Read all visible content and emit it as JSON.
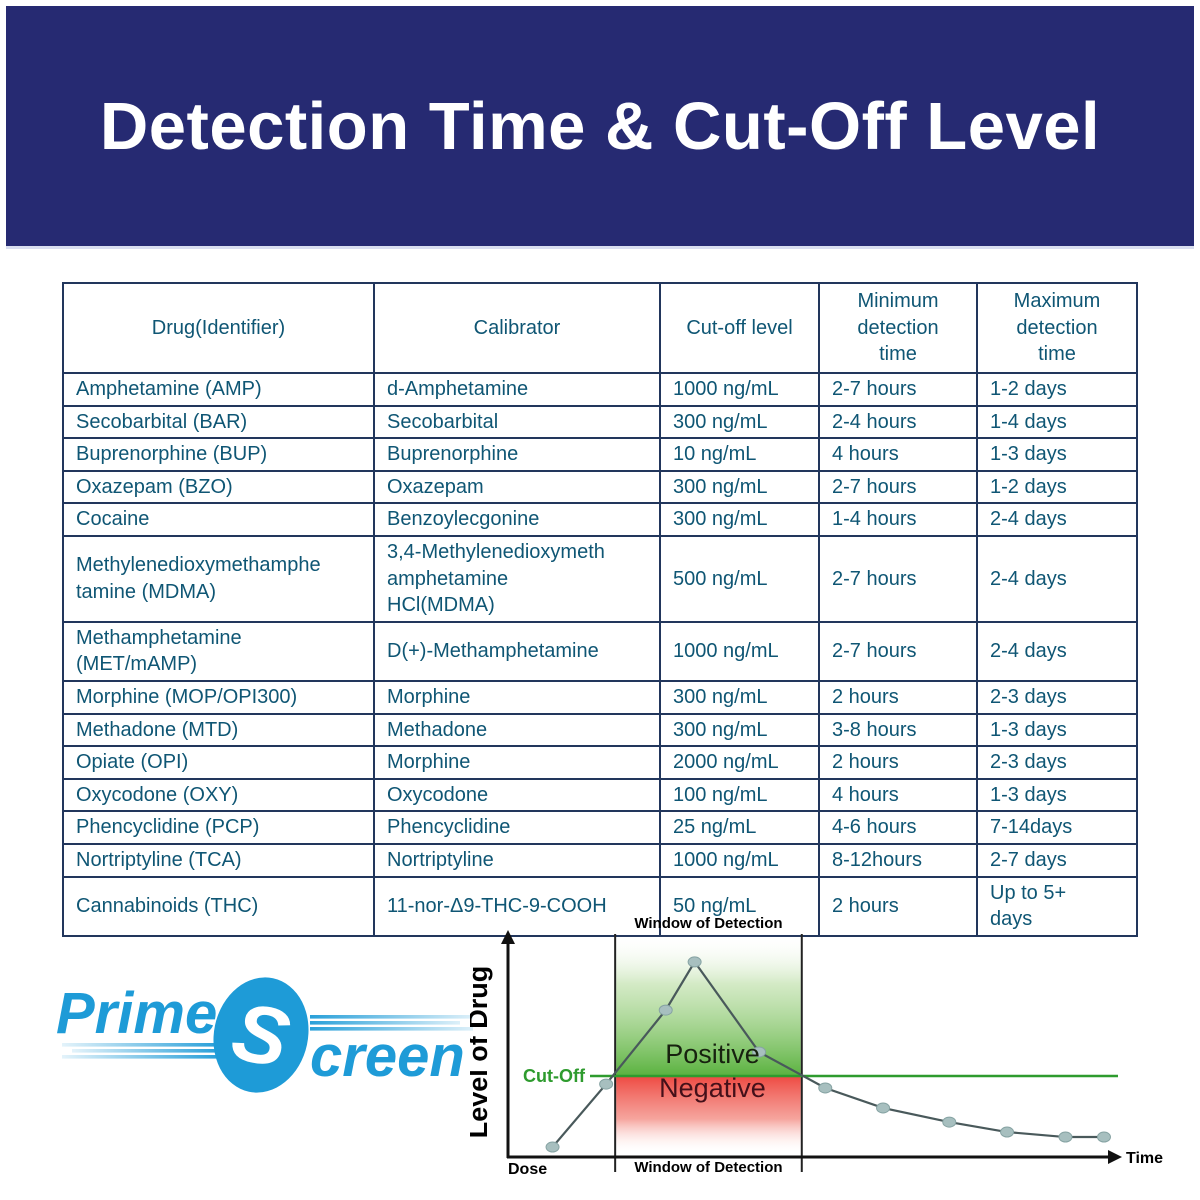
{
  "header": {
    "title": "Detection Time & Cut-Off Level",
    "background_color": "#262a72",
    "text_color": "#ffffff"
  },
  "table": {
    "text_color": "#0f5674",
    "border_color": "#22365c",
    "columns": [
      "Drug(Identifier)",
      "Calibrator",
      "Cut-off level",
      "Minimum\ndetection\ntime",
      "Maximum\ndetection\ntime"
    ],
    "rows": [
      [
        "Amphetamine (AMP)",
        "d-Amphetamine",
        "1000 ng/mL",
        "2-7 hours",
        "1-2 days"
      ],
      [
        "Secobarbital (BAR)",
        "Secobarbital",
        "300 ng/mL",
        "2-4 hours",
        "1-4 days"
      ],
      [
        "Buprenorphine (BUP)",
        "Buprenorphine",
        "10 ng/mL",
        "4 hours",
        "1-3 days"
      ],
      [
        "Oxazepam (BZO)",
        "Oxazepam",
        "300 ng/mL",
        "2-7 hours",
        "1-2 days"
      ],
      [
        "Cocaine",
        "Benzoylecgonine",
        "300 ng/mL",
        "1-4 hours",
        "2-4 days"
      ],
      [
        "Methylenedioxymethamphe\ntamine (MDMA)",
        "3,4-Methylenedioxymeth\namphetamine\nHCl(MDMA)",
        "500 ng/mL",
        "2-7 hours",
        "2-4 days"
      ],
      [
        "Methamphetamine\n(MET/mAMP)",
        "D(+)-Methamphetamine",
        "1000 ng/mL",
        "2-7 hours",
        "2-4 days"
      ],
      [
        "Morphine (MOP/OPI300)",
        "Morphine",
        "300 ng/mL",
        "2 hours",
        "2-3 days"
      ],
      [
        "Methadone (MTD)",
        "Methadone",
        "300 ng/mL",
        "3-8 hours",
        "1-3 days"
      ],
      [
        "Opiate (OPI)",
        "Morphine",
        "2000 ng/mL",
        "2 hours",
        "2-3 days"
      ],
      [
        "Oxycodone (OXY)",
        "Oxycodone",
        "100 ng/mL",
        "4 hours",
        "1-3 days"
      ],
      [
        "Phencyclidine (PCP)",
        "Phencyclidine",
        "25 ng/mL",
        "4-6 hours",
        "7-14days"
      ],
      [
        "Nortriptyline (TCA)",
        "Nortriptyline",
        "1000 ng/mL",
        "8-12hours",
        "2-7 days"
      ],
      [
        "Cannabinoids (THC)",
        "11-nor-Δ9-THC-9-COOH",
        "50 ng/mL",
        "2 hours",
        "Up to 5+\ndays"
      ]
    ]
  },
  "logo": {
    "prime": "Prime",
    "s": "S",
    "creen": "creen",
    "color": "#1e9bd7"
  },
  "chart_data": {
    "type": "line",
    "title": "",
    "ylabel": "Level of Drug",
    "xlabel": "Time",
    "dose_label": "Dose",
    "window_label": "Window of Detection",
    "cutoff_label": "Cut-Off",
    "positive_label": "Positive",
    "negative_label": "Negative",
    "xlim": [
      0,
      10
    ],
    "ylim": [
      0,
      10
    ],
    "grid": false,
    "cutoff_level": 3.73,
    "window_x": [
      1.78,
      4.88
    ],
    "points": [
      {
        "x": 0.74,
        "y": 0.46
      },
      {
        "x": 1.63,
        "y": 3.36
      },
      {
        "x": 2.62,
        "y": 6.77
      },
      {
        "x": 3.1,
        "y": 8.99
      },
      {
        "x": 4.17,
        "y": 4.84
      },
      {
        "x": 5.27,
        "y": 3.18
      },
      {
        "x": 6.23,
        "y": 2.26
      },
      {
        "x": 7.33,
        "y": 1.61
      },
      {
        "x": 8.29,
        "y": 1.15
      },
      {
        "x": 9.26,
        "y": 0.92
      },
      {
        "x": 9.9,
        "y": 0.92
      }
    ],
    "colors": {
      "cutoff_line": "#2e9b2e",
      "curve": "#49595b",
      "dot_fill": "#a7bfbf",
      "dot_stroke": "#86a3a3",
      "positive_text": "#17220f",
      "negative_text": "#441019",
      "green_region": "#5ab23f",
      "red_region": "#ee4a42",
      "axis": "#111111"
    }
  }
}
